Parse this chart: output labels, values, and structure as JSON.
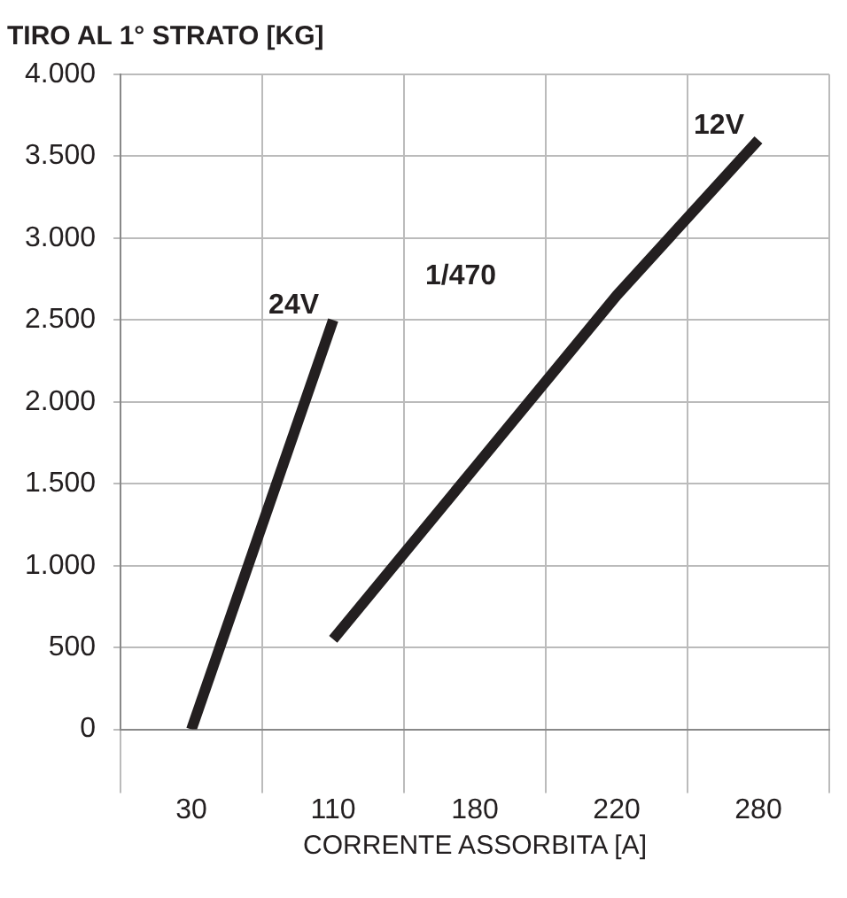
{
  "chart_data": {
    "type": "line",
    "title": "TIRO AL 1° STRATO [KG]",
    "xlabel": "CORRENTE ASSORBITA [A]",
    "categories": [
      "30",
      "110",
      "180",
      "220",
      "280"
    ],
    "ylim": [
      0,
      4000
    ],
    "yticks": [
      {
        "value": 0,
        "label": "0"
      },
      {
        "value": 500,
        "label": "500"
      },
      {
        "value": 1000,
        "label": "1.000"
      },
      {
        "value": 1500,
        "label": "1.500"
      },
      {
        "value": 2000,
        "label": "2.000"
      },
      {
        "value": 2500,
        "label": "2.500"
      },
      {
        "value": 3000,
        "label": "3.000"
      },
      {
        "value": 3500,
        "label": "3.500"
      },
      {
        "value": 4000,
        "label": "4.000"
      }
    ],
    "series": [
      {
        "name": "24V",
        "color": "#231f20",
        "values": [
          0,
          2500,
          null,
          null,
          null
        ]
      },
      {
        "name": "12V",
        "color": "#231f20",
        "values": [
          null,
          550,
          1600,
          2650,
          3600
        ]
      }
    ],
    "annotations": [
      "1/470"
    ],
    "grid": true,
    "legend": false,
    "marker": "none",
    "line_style": "solid"
  }
}
